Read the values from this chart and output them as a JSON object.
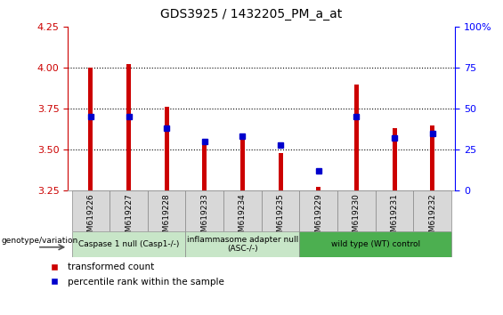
{
  "title": "GDS3925 / 1432205_PM_a_at",
  "samples": [
    "GSM619226",
    "GSM619227",
    "GSM619228",
    "GSM619233",
    "GSM619234",
    "GSM619235",
    "GSM619229",
    "GSM619230",
    "GSM619231",
    "GSM619232"
  ],
  "bar_values": [
    4.0,
    4.02,
    3.76,
    3.55,
    3.57,
    3.48,
    3.27,
    3.9,
    3.63,
    3.65
  ],
  "percentile_values": [
    45,
    45,
    38,
    30,
    33,
    28,
    12,
    45,
    32,
    35
  ],
  "ylim": [
    3.25,
    4.25
  ],
  "y2lim": [
    0,
    100
  ],
  "yticks": [
    3.25,
    3.5,
    3.75,
    4.0,
    4.25
  ],
  "y2ticks": [
    0,
    25,
    50,
    75,
    100
  ],
  "bar_color": "#cc0000",
  "point_color": "#0000cc",
  "groups": [
    {
      "label": "Caspase 1 null (Casp1-/-)",
      "indices": [
        0,
        1,
        2
      ],
      "color": "#c8e6c8"
    },
    {
      "label": "inflammasome adapter null\n(ASC-/-)",
      "indices": [
        3,
        4,
        5
      ],
      "color": "#c8e6c8"
    },
    {
      "label": "wild type (WT) control",
      "indices": [
        6,
        7,
        8,
        9
      ],
      "color": "#4caf50"
    }
  ],
  "legend_red_label": "transformed count",
  "legend_blue_label": "percentile rank within the sample",
  "genotype_label": "genotype/variation"
}
